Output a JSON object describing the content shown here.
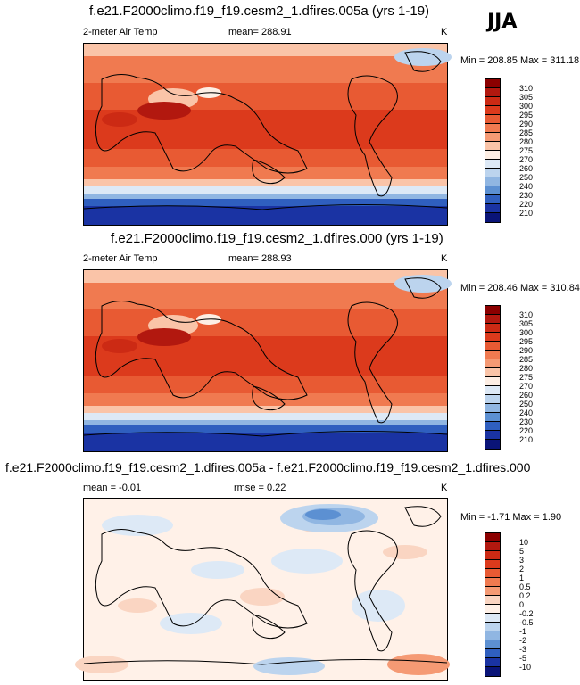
{
  "season": "JJA",
  "panels": [
    {
      "title": "f.e21.F2000climo.f19_f19.cesm2_1.dfires.005a (yrs 1-19)",
      "left_label": "2-meter Air Temp",
      "center_label": "mean= 288.91",
      "units": "K",
      "min_max": "Min = 208.85 Max = 311.18",
      "colorbar": {
        "labels": [
          "310",
          "305",
          "300",
          "295",
          "290",
          "285",
          "280",
          "275",
          "270",
          "260",
          "250",
          "240",
          "230",
          "220",
          "210"
        ],
        "colors": [
          "#8b0000",
          "#b2180f",
          "#cc2a14",
          "#dc3a1c",
          "#e85a33",
          "#f07a50",
          "#f59a74",
          "#fac4a8",
          "#fdeee4",
          "#dde9f6",
          "#bcd4ee",
          "#90b6e2",
          "#5c90d2",
          "#2f5fbf",
          "#1a33a3",
          "#0a1478"
        ]
      }
    },
    {
      "title": "f.e21.F2000climo.f19_f19.cesm2_1.dfires.000 (yrs 1-19)",
      "left_label": "2-meter Air Temp",
      "center_label": "mean= 288.93",
      "units": "K",
      "min_max": "Min = 208.46 Max = 310.84",
      "colorbar": {
        "labels": [
          "310",
          "305",
          "300",
          "295",
          "290",
          "285",
          "280",
          "275",
          "270",
          "260",
          "250",
          "240",
          "230",
          "220",
          "210"
        ],
        "colors": [
          "#8b0000",
          "#b2180f",
          "#cc2a14",
          "#dc3a1c",
          "#e85a33",
          "#f07a50",
          "#f59a74",
          "#fac4a8",
          "#fdeee4",
          "#dde9f6",
          "#bcd4ee",
          "#90b6e2",
          "#5c90d2",
          "#2f5fbf",
          "#1a33a3",
          "#0a1478"
        ]
      }
    },
    {
      "title": "f.e21.F2000climo.f19_f19.cesm2_1.dfires.005a - f.e21.F2000climo.f19_f19.cesm2_1.dfires.000",
      "left_label": "mean =  -0.01",
      "center_label": "rmse =   0.22",
      "units": "K",
      "min_max": "Min =  -1.71 Max =   1.90",
      "colorbar": {
        "labels": [
          "10",
          "5",
          "3",
          "2",
          "1",
          "0.5",
          "0.2",
          "0",
          "-0.2",
          "-0.5",
          "-1",
          "-2",
          "-3",
          "-5",
          "-10"
        ],
        "colors": [
          "#8b0000",
          "#b2180f",
          "#cc2a14",
          "#dc3a1c",
          "#e85a33",
          "#f07a50",
          "#f59a74",
          "#fad5c2",
          "#fff1e8",
          "#dde9f6",
          "#bcd4ee",
          "#90b6e2",
          "#5c90d2",
          "#2f5fbf",
          "#1a33a3",
          "#0a1478"
        ]
      }
    }
  ]
}
